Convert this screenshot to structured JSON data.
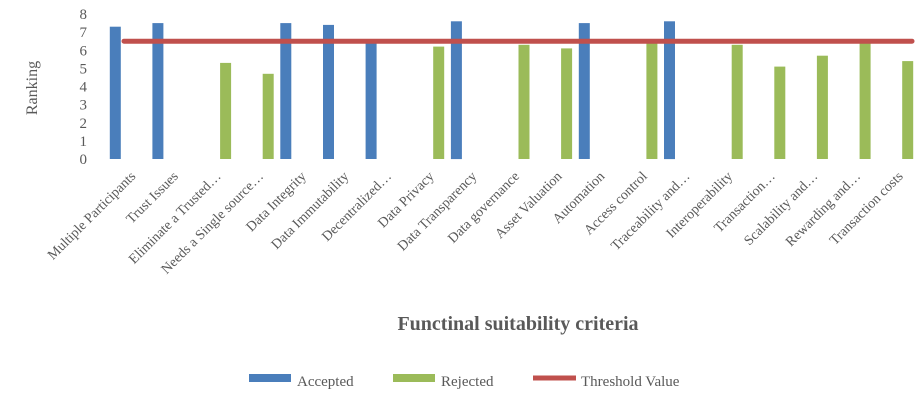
{
  "chart_data": {
    "type": "bar",
    "xlabel": "Functinal suitability criteria",
    "ylabel": "Ranking",
    "ylim": [
      0,
      8
    ],
    "yticks": [
      0,
      1,
      2,
      3,
      4,
      5,
      6,
      7,
      8
    ],
    "gridlines": false,
    "legend_position": "bottom",
    "categories": [
      "Multiple Participants",
      "Trust Issues",
      "Eliminate a Trusted…",
      "Needs a Single source…",
      "Data Integrity",
      "Data Immutability",
      "Decentralized…",
      "Data Privacy",
      "Data Transparency",
      "Data governance",
      "Asset Valuation",
      "Automation",
      "Access control",
      "Traceability and…",
      "Interoperability",
      "Transaction…",
      "Scalability and…",
      "Rewarding and…",
      "Transaction costs"
    ],
    "series": [
      {
        "name": "Accepted",
        "color": "#4a7ebb",
        "values": [
          7.3,
          7.5,
          null,
          null,
          7.5,
          7.4,
          6.6,
          null,
          7.6,
          null,
          null,
          7.5,
          null,
          7.6,
          null,
          null,
          null,
          null,
          null
        ]
      },
      {
        "name": "Rejected",
        "color": "#9bbb59",
        "values": [
          null,
          null,
          5.3,
          4.7,
          null,
          null,
          null,
          6.2,
          null,
          6.3,
          6.1,
          null,
          6.4,
          null,
          6.3,
          5.1,
          5.7,
          6.5,
          5.4
        ]
      }
    ],
    "threshold": {
      "name": "Threshold Value",
      "color": "#c0504d",
      "value": 6.5
    }
  }
}
